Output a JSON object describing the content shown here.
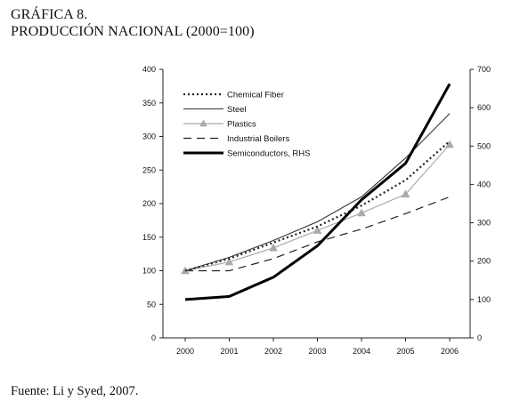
{
  "header": {
    "line1": "GRÁFICA 8.",
    "line2": "PRODUCCIÓN NACIONAL (2000=100)"
  },
  "source": "Fuente: Li y Syed, 2007.",
  "chart_data": {
    "type": "line",
    "categories": [
      "2000",
      "2001",
      "2002",
      "2003",
      "2004",
      "2005",
      "2006"
    ],
    "y_left": {
      "range": [
        0,
        400
      ],
      "ticks": [
        0,
        50,
        100,
        150,
        200,
        250,
        300,
        350,
        400
      ]
    },
    "y_right": {
      "range": [
        0,
        700
      ],
      "ticks": [
        0,
        100,
        200,
        300,
        400,
        500,
        600,
        700
      ]
    },
    "grid": false,
    "legend_position": "top-left",
    "series": [
      {
        "name": "Chemical Fiber",
        "axis": "left",
        "style": "dotted",
        "color": "#222222",
        "values": [
          100,
          118,
          142,
          166,
          197,
          235,
          293
        ]
      },
      {
        "name": "Steel",
        "axis": "left",
        "style": "solid-thin",
        "color": "#333333",
        "values": [
          100,
          120,
          145,
          173,
          210,
          268,
          334
        ]
      },
      {
        "name": "Plastics",
        "axis": "left",
        "style": "triangle-markers",
        "color": "#aaaaaa",
        "values": [
          100,
          113,
          134,
          160,
          186,
          214,
          288
        ]
      },
      {
        "name": "Industrial Boilers",
        "axis": "left",
        "style": "dashed",
        "color": "#222222",
        "values": [
          100,
          100,
          118,
          143,
          162,
          185,
          210
        ]
      },
      {
        "name": "Semiconductors, RHS",
        "axis": "right",
        "style": "solid-thick",
        "color": "#000000",
        "values": [
          100,
          108,
          158,
          240,
          360,
          455,
          662
        ]
      }
    ]
  }
}
